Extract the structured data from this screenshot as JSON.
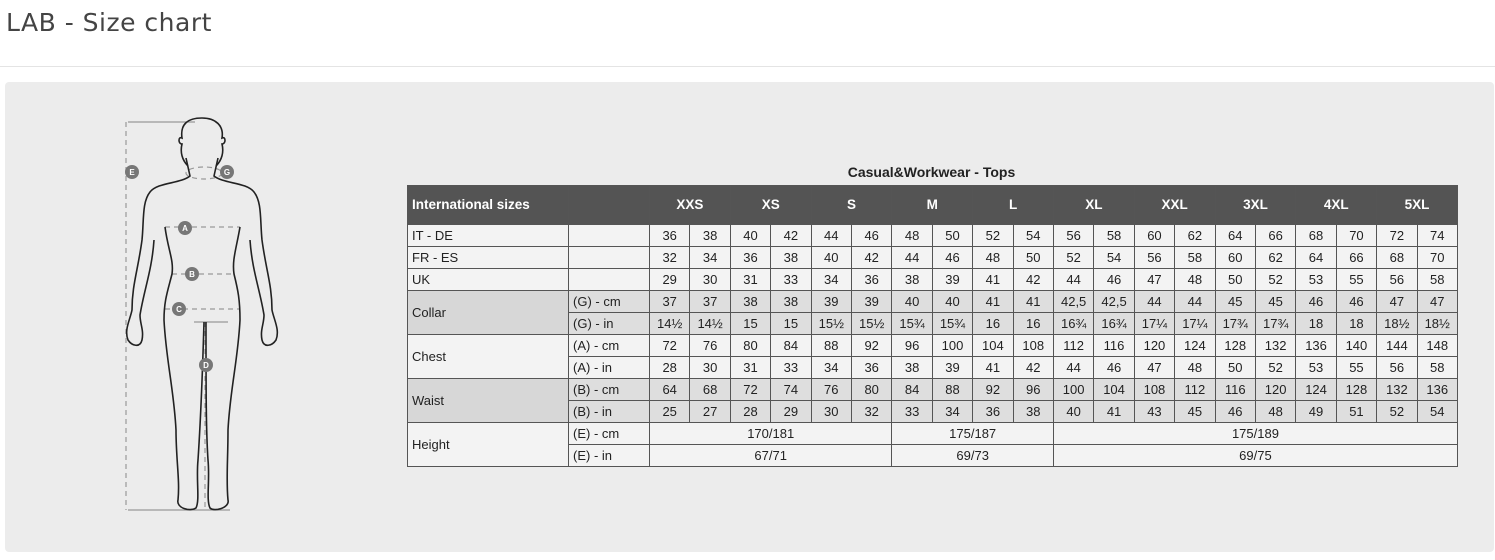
{
  "page_title": "LAB - Size chart",
  "figure": {
    "markers": {
      "A": "A",
      "B": "B",
      "C": "C",
      "D": "D",
      "E": "E",
      "G": "G"
    }
  },
  "table": {
    "title": "Casual&Workwear - Tops",
    "header_label": "International sizes",
    "sizes": [
      "XXS",
      "XS",
      "S",
      "M",
      "L",
      "XL",
      "XXL",
      "3XL",
      "4XL",
      "5XL"
    ],
    "groups": [
      {
        "label": "IT - DE",
        "shade": "light",
        "rows": [
          {
            "unit": "",
            "values": [
              "36",
              "38",
              "40",
              "42",
              "44",
              "46",
              "48",
              "50",
              "52",
              "54",
              "56",
              "58",
              "60",
              "62",
              "64",
              "66",
              "68",
              "70",
              "72",
              "74"
            ]
          }
        ]
      },
      {
        "label": "FR - ES",
        "shade": "light",
        "rows": [
          {
            "unit": "",
            "values": [
              "32",
              "34",
              "36",
              "38",
              "40",
              "42",
              "44",
              "46",
              "48",
              "50",
              "52",
              "54",
              "56",
              "58",
              "60",
              "62",
              "64",
              "66",
              "68",
              "70"
            ]
          }
        ]
      },
      {
        "label": "UK",
        "shade": "light",
        "rows": [
          {
            "unit": "",
            "values": [
              "29",
              "30",
              "31",
              "33",
              "34",
              "36",
              "38",
              "39",
              "41",
              "42",
              "44",
              "46",
              "47",
              "48",
              "50",
              "52",
              "53",
              "55",
              "56",
              "58"
            ]
          }
        ]
      },
      {
        "label": "Collar",
        "shade": "dark",
        "rows": [
          {
            "unit": "(G) - cm",
            "values": [
              "37",
              "37",
              "38",
              "38",
              "39",
              "39",
              "40",
              "40",
              "41",
              "41",
              "42,5",
              "42,5",
              "44",
              "44",
              "45",
              "45",
              "46",
              "46",
              "47",
              "47"
            ]
          },
          {
            "unit": "(G)  - in",
            "values": [
              "14½",
              "14½",
              "15",
              "15",
              "15½",
              "15½",
              "15¾",
              "15¾",
              "16",
              "16",
              "16¾",
              "16¾",
              "17¼",
              "17¼",
              "17¾",
              "17¾",
              "18",
              "18",
              "18½",
              "18½"
            ]
          }
        ]
      },
      {
        "label": "Chest",
        "shade": "light",
        "rows": [
          {
            "unit": "(A) - cm",
            "values": [
              "72",
              "76",
              "80",
              "84",
              "88",
              "92",
              "96",
              "100",
              "104",
              "108",
              "112",
              "116",
              "120",
              "124",
              "128",
              "132",
              "136",
              "140",
              "144",
              "148"
            ]
          },
          {
            "unit": "(A) - in",
            "values": [
              "28",
              "30",
              "31",
              "33",
              "34",
              "36",
              "38",
              "39",
              "41",
              "42",
              "44",
              "46",
              "47",
              "48",
              "50",
              "52",
              "53",
              "55",
              "56",
              "58"
            ]
          }
        ]
      },
      {
        "label": "Waist",
        "shade": "dark",
        "rows": [
          {
            "unit": "(B) - cm",
            "values": [
              "64",
              "68",
              "72",
              "74",
              "76",
              "80",
              "84",
              "88",
              "92",
              "96",
              "100",
              "104",
              "108",
              "112",
              "116",
              "120",
              "124",
              "128",
              "132",
              "136"
            ]
          },
          {
            "unit": "(B) - in",
            "values": [
              "25",
              "27",
              "28",
              "29",
              "30",
              "32",
              "33",
              "34",
              "36",
              "38",
              "40",
              "41",
              "43",
              "45",
              "46",
              "48",
              "49",
              "51",
              "52",
              "54"
            ]
          }
        ]
      },
      {
        "label": "Height",
        "shade": "light",
        "rows": [
          {
            "unit": "(E) - cm",
            "spans": [
              {
                "value": "170/181",
                "cols": 6
              },
              {
                "value": "175/187",
                "cols": 4
              },
              {
                "value": "175/189",
                "cols": 10
              }
            ]
          },
          {
            "unit": "(E) - in",
            "spans": [
              {
                "value": "67/71",
                "cols": 6
              },
              {
                "value": "69/73",
                "cols": 4
              },
              {
                "value": "69/75",
                "cols": 10
              }
            ]
          }
        ]
      }
    ]
  }
}
